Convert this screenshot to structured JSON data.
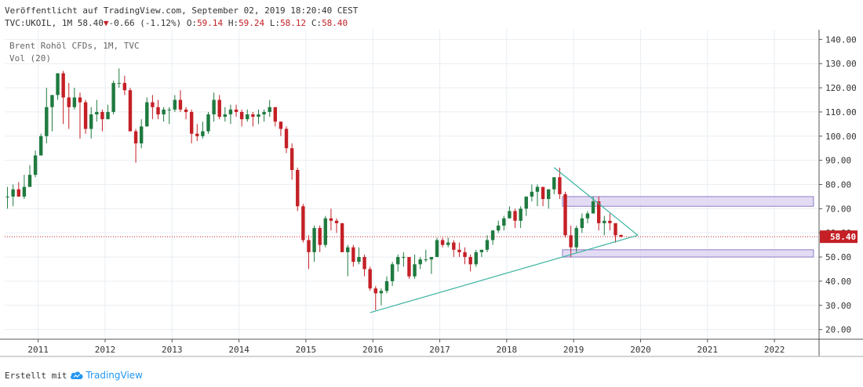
{
  "header": {
    "published": "Veröffentlicht auf TradingView.com, September 02, 2019 18:20:40 CEST",
    "symbol": "TVC:UKOIL, 1M 58.40",
    "change": "-0.66 (-1.12%)",
    "o_label": "O:",
    "o_val": "59.14",
    "h_label": "H:",
    "h_val": "59.24",
    "l_label": "L:",
    "l_val": "58.12",
    "c_label": "C:",
    "c_val": "58.40"
  },
  "legend": {
    "title": "Brent Rohöl CFDs, 1M, TVC",
    "volume": "Vol (20)"
  },
  "footer": {
    "created_with": "Erstellt mit",
    "brand": "TradingView"
  },
  "colors": {
    "up": "#1f7a3f",
    "down": "#c42026",
    "trendline": "#3bb3a0",
    "zone_fill": "#d9cfef",
    "zone_border": "#8f7cc5",
    "price_line": "#c42026",
    "grid": "#e8eef3"
  },
  "chart_data": {
    "type": "candlestick",
    "instrument": "TVC:UKOIL",
    "interval": "1M",
    "last_price": 58.4,
    "last_price_label": "58.40",
    "ylim": [
      16,
      144
    ],
    "y_ticks": [
      20,
      30,
      40,
      50,
      60,
      70,
      80,
      90,
      100,
      110,
      120,
      130,
      140
    ],
    "y_tick_labels": [
      "20.00",
      "30.00",
      "40.00",
      "50.00",
      "60.00",
      "70.00",
      "80.00",
      "90.00",
      "100.00",
      "110.00",
      "120.00",
      "130.00",
      "140.00"
    ],
    "x_range": [
      "2010-07",
      "2022-09"
    ],
    "x_ticks": [
      "2011-01",
      "2012-01",
      "2013-01",
      "2014-01",
      "2015-01",
      "2016-01",
      "2017-01",
      "2018-01",
      "2019-01",
      "2020-01",
      "2021-01",
      "2022-01"
    ],
    "x_tick_labels": [
      "2011",
      "2012",
      "2013",
      "2014",
      "2015",
      "2016",
      "2017",
      "2018",
      "2019",
      "2020",
      "2021",
      "2022"
    ],
    "candles": [
      {
        "d": "2010-07",
        "o": 75,
        "h": 79,
        "l": 70,
        "c": 75
      },
      {
        "d": "2010-08",
        "o": 75,
        "h": 80,
        "l": 71,
        "c": 78
      },
      {
        "d": "2010-09",
        "o": 78,
        "h": 81,
        "l": 75,
        "c": 75
      },
      {
        "d": "2010-10",
        "o": 75,
        "h": 84,
        "l": 74,
        "c": 79
      },
      {
        "d": "2010-11",
        "o": 79,
        "h": 88,
        "l": 80,
        "c": 84
      },
      {
        "d": "2010-12",
        "o": 84,
        "h": 94,
        "l": 83,
        "c": 92
      },
      {
        "d": "2011-01",
        "o": 92,
        "h": 101,
        "l": 92,
        "c": 100
      },
      {
        "d": "2011-02",
        "o": 100,
        "h": 120,
        "l": 97,
        "c": 112
      },
      {
        "d": "2011-03",
        "o": 112,
        "h": 117,
        "l": 102,
        "c": 117
      },
      {
        "d": "2011-04",
        "o": 117,
        "h": 126,
        "l": 115,
        "c": 126
      },
      {
        "d": "2011-05",
        "o": 126,
        "h": 127,
        "l": 105,
        "c": 116
      },
      {
        "d": "2011-06",
        "o": 116,
        "h": 122,
        "l": 103,
        "c": 112
      },
      {
        "d": "2011-07",
        "o": 112,
        "h": 120,
        "l": 111,
        "c": 116
      },
      {
        "d": "2011-08",
        "o": 116,
        "h": 118,
        "l": 99,
        "c": 114
      },
      {
        "d": "2011-09",
        "o": 114,
        "h": 115,
        "l": 101,
        "c": 103
      },
      {
        "d": "2011-10",
        "o": 103,
        "h": 112,
        "l": 99,
        "c": 109
      },
      {
        "d": "2011-11",
        "o": 109,
        "h": 115,
        "l": 106,
        "c": 110
      },
      {
        "d": "2011-12",
        "o": 110,
        "h": 111,
        "l": 102,
        "c": 107
      },
      {
        "d": "2012-01",
        "o": 107,
        "h": 113,
        "l": 107,
        "c": 110
      },
      {
        "d": "2012-02",
        "o": 110,
        "h": 123,
        "l": 109,
        "c": 122
      },
      {
        "d": "2012-03",
        "o": 122,
        "h": 128,
        "l": 120,
        "c": 122
      },
      {
        "d": "2012-04",
        "o": 122,
        "h": 125,
        "l": 117,
        "c": 119
      },
      {
        "d": "2012-05",
        "o": 119,
        "h": 120,
        "l": 102,
        "c": 102
      },
      {
        "d": "2012-06",
        "o": 102,
        "h": 103,
        "l": 89,
        "c": 97
      },
      {
        "d": "2012-07",
        "o": 97,
        "h": 107,
        "l": 95,
        "c": 104
      },
      {
        "d": "2012-08",
        "o": 104,
        "h": 116,
        "l": 104,
        "c": 114
      },
      {
        "d": "2012-09",
        "o": 114,
        "h": 117,
        "l": 107,
        "c": 112
      },
      {
        "d": "2012-10",
        "o": 112,
        "h": 115,
        "l": 107,
        "c": 109
      },
      {
        "d": "2012-11",
        "o": 109,
        "h": 112,
        "l": 106,
        "c": 111
      },
      {
        "d": "2012-12",
        "o": 111,
        "h": 112,
        "l": 105,
        "c": 111
      },
      {
        "d": "2013-01",
        "o": 111,
        "h": 117,
        "l": 110,
        "c": 115
      },
      {
        "d": "2013-02",
        "o": 115,
        "h": 119,
        "l": 110,
        "c": 111
      },
      {
        "d": "2013-03",
        "o": 111,
        "h": 112,
        "l": 107,
        "c": 110
      },
      {
        "d": "2013-04",
        "o": 110,
        "h": 111,
        "l": 97,
        "c": 101
      },
      {
        "d": "2013-05",
        "o": 101,
        "h": 105,
        "l": 98,
        "c": 100
      },
      {
        "d": "2013-06",
        "o": 100,
        "h": 106,
        "l": 99,
        "c": 102
      },
      {
        "d": "2013-07",
        "o": 102,
        "h": 110,
        "l": 101,
        "c": 109
      },
      {
        "d": "2013-08",
        "o": 109,
        "h": 118,
        "l": 106,
        "c": 115
      },
      {
        "d": "2013-09",
        "o": 115,
        "h": 117,
        "l": 107,
        "c": 108
      },
      {
        "d": "2013-10",
        "o": 108,
        "h": 112,
        "l": 106,
        "c": 109
      },
      {
        "d": "2013-11",
        "o": 109,
        "h": 113,
        "l": 105,
        "c": 111
      },
      {
        "d": "2013-12",
        "o": 111,
        "h": 113,
        "l": 108,
        "c": 110
      },
      {
        "d": "2014-01",
        "o": 110,
        "h": 111,
        "l": 104,
        "c": 107
      },
      {
        "d": "2014-02",
        "o": 107,
        "h": 111,
        "l": 106,
        "c": 109
      },
      {
        "d": "2014-03",
        "o": 109,
        "h": 110,
        "l": 104,
        "c": 108
      },
      {
        "d": "2014-04",
        "o": 108,
        "h": 111,
        "l": 105,
        "c": 109
      },
      {
        "d": "2014-05",
        "o": 109,
        "h": 111,
        "l": 106,
        "c": 110
      },
      {
        "d": "2014-06",
        "o": 110,
        "h": 115,
        "l": 108,
        "c": 112
      },
      {
        "d": "2014-07",
        "o": 112,
        "h": 112,
        "l": 104,
        "c": 106
      },
      {
        "d": "2014-08",
        "o": 106,
        "h": 106,
        "l": 100,
        "c": 103
      },
      {
        "d": "2014-09",
        "o": 103,
        "h": 104,
        "l": 93,
        "c": 95
      },
      {
        "d": "2014-10",
        "o": 95,
        "h": 97,
        "l": 82,
        "c": 86
      },
      {
        "d": "2014-11",
        "o": 86,
        "h": 87,
        "l": 69,
        "c": 71
      },
      {
        "d": "2014-12",
        "o": 71,
        "h": 72,
        "l": 56,
        "c": 57
      },
      {
        "d": "2015-01",
        "o": 57,
        "h": 59,
        "l": 45,
        "c": 52
      },
      {
        "d": "2015-02",
        "o": 52,
        "h": 63,
        "l": 48,
        "c": 62
      },
      {
        "d": "2015-03",
        "o": 62,
        "h": 63,
        "l": 52,
        "c": 55
      },
      {
        "d": "2015-04",
        "o": 55,
        "h": 67,
        "l": 54,
        "c": 66
      },
      {
        "d": "2015-05",
        "o": 66,
        "h": 70,
        "l": 61,
        "c": 65
      },
      {
        "d": "2015-06",
        "o": 65,
        "h": 66,
        "l": 60,
        "c": 64
      },
      {
        "d": "2015-07",
        "o": 64,
        "h": 64,
        "l": 52,
        "c": 52
      },
      {
        "d": "2015-08",
        "o": 52,
        "h": 55,
        "l": 42,
        "c": 54
      },
      {
        "d": "2015-09",
        "o": 54,
        "h": 55,
        "l": 46,
        "c": 48
      },
      {
        "d": "2015-10",
        "o": 48,
        "h": 54,
        "l": 47,
        "c": 50
      },
      {
        "d": "2015-11",
        "o": 50,
        "h": 51,
        "l": 42,
        "c": 45
      },
      {
        "d": "2015-12",
        "o": 45,
        "h": 46,
        "l": 36,
        "c": 37
      },
      {
        "d": "2016-01",
        "o": 37,
        "h": 38,
        "l": 28,
        "c": 35
      },
      {
        "d": "2016-02",
        "o": 35,
        "h": 37,
        "l": 30,
        "c": 36
      },
      {
        "d": "2016-03",
        "o": 36,
        "h": 42,
        "l": 35,
        "c": 40
      },
      {
        "d": "2016-04",
        "o": 40,
        "h": 48,
        "l": 38,
        "c": 47
      },
      {
        "d": "2016-05",
        "o": 47,
        "h": 51,
        "l": 44,
        "c": 50
      },
      {
        "d": "2016-06",
        "o": 50,
        "h": 52,
        "l": 46,
        "c": 50
      },
      {
        "d": "2016-07",
        "o": 50,
        "h": 50,
        "l": 41,
        "c": 42
      },
      {
        "d": "2016-08",
        "o": 42,
        "h": 51,
        "l": 41,
        "c": 47
      },
      {
        "d": "2016-09",
        "o": 47,
        "h": 50,
        "l": 45,
        "c": 49
      },
      {
        "d": "2016-10",
        "o": 49,
        "h": 53,
        "l": 48,
        "c": 49
      },
      {
        "d": "2016-11",
        "o": 49,
        "h": 50,
        "l": 43,
        "c": 50
      },
      {
        "d": "2016-12",
        "o": 50,
        "h": 58,
        "l": 50,
        "c": 57
      },
      {
        "d": "2017-01",
        "o": 57,
        "h": 58,
        "l": 54,
        "c": 55
      },
      {
        "d": "2017-02",
        "o": 55,
        "h": 58,
        "l": 54,
        "c": 56
      },
      {
        "d": "2017-03",
        "o": 56,
        "h": 57,
        "l": 50,
        "c": 53
      },
      {
        "d": "2017-04",
        "o": 53,
        "h": 56,
        "l": 50,
        "c": 52
      },
      {
        "d": "2017-05",
        "o": 52,
        "h": 54,
        "l": 47,
        "c": 50
      },
      {
        "d": "2017-06",
        "o": 50,
        "h": 51,
        "l": 44,
        "c": 47
      },
      {
        "d": "2017-07",
        "o": 47,
        "h": 53,
        "l": 46,
        "c": 52
      },
      {
        "d": "2017-08",
        "o": 52,
        "h": 53,
        "l": 50,
        "c": 53
      },
      {
        "d": "2017-09",
        "o": 53,
        "h": 59,
        "l": 52,
        "c": 57
      },
      {
        "d": "2017-10",
        "o": 57,
        "h": 61,
        "l": 55,
        "c": 61
      },
      {
        "d": "2017-11",
        "o": 61,
        "h": 65,
        "l": 60,
        "c": 63
      },
      {
        "d": "2017-12",
        "o": 63,
        "h": 67,
        "l": 61,
        "c": 66
      },
      {
        "d": "2018-01",
        "o": 66,
        "h": 71,
        "l": 66,
        "c": 69
      },
      {
        "d": "2018-02",
        "o": 69,
        "h": 70,
        "l": 62,
        "c": 65
      },
      {
        "d": "2018-03",
        "o": 65,
        "h": 71,
        "l": 62,
        "c": 70
      },
      {
        "d": "2018-04",
        "o": 70,
        "h": 75,
        "l": 67,
        "c": 75
      },
      {
        "d": "2018-05",
        "o": 75,
        "h": 80,
        "l": 73,
        "c": 77
      },
      {
        "d": "2018-06",
        "o": 77,
        "h": 80,
        "l": 71,
        "c": 79
      },
      {
        "d": "2018-07",
        "o": 79,
        "h": 79,
        "l": 71,
        "c": 74
      },
      {
        "d": "2018-08",
        "o": 74,
        "h": 78,
        "l": 70,
        "c": 78
      },
      {
        "d": "2018-09",
        "o": 78,
        "h": 83,
        "l": 76,
        "c": 83
      },
      {
        "d": "2018-10",
        "o": 83,
        "h": 87,
        "l": 74,
        "c": 76
      },
      {
        "d": "2018-11",
        "o": 76,
        "h": 77,
        "l": 58,
        "c": 59
      },
      {
        "d": "2018-12",
        "o": 59,
        "h": 63,
        "l": 50,
        "c": 54
      },
      {
        "d": "2019-01",
        "o": 54,
        "h": 63,
        "l": 52,
        "c": 62
      },
      {
        "d": "2019-02",
        "o": 62,
        "h": 68,
        "l": 60,
        "c": 66
      },
      {
        "d": "2019-03",
        "o": 66,
        "h": 69,
        "l": 64,
        "c": 68
      },
      {
        "d": "2019-04",
        "o": 68,
        "h": 75,
        "l": 68,
        "c": 73
      },
      {
        "d": "2019-05",
        "o": 73,
        "h": 75,
        "l": 61,
        "c": 64
      },
      {
        "d": "2019-06",
        "o": 64,
        "h": 67,
        "l": 59,
        "c": 65
      },
      {
        "d": "2019-07",
        "o": 65,
        "h": 68,
        "l": 61,
        "c": 64
      },
      {
        "d": "2019-08",
        "o": 64,
        "h": 64,
        "l": 56,
        "c": 59
      },
      {
        "d": "2019-09",
        "o": 59.14,
        "h": 59.24,
        "l": 58.12,
        "c": 58.4
      }
    ],
    "trendlines": [
      {
        "from": [
          "2015-12",
          27
        ],
        "to": [
          "2019-12",
          59
        ]
      },
      {
        "from": [
          "2018-09",
          87
        ],
        "to": [
          "2019-12",
          59
        ]
      }
    ],
    "zones": [
      {
        "from": "2018-11",
        "to": "2022-08",
        "low": 71,
        "high": 75
      },
      {
        "from": "2018-11",
        "to": "2022-08",
        "low": 50,
        "high": 53
      }
    ]
  }
}
